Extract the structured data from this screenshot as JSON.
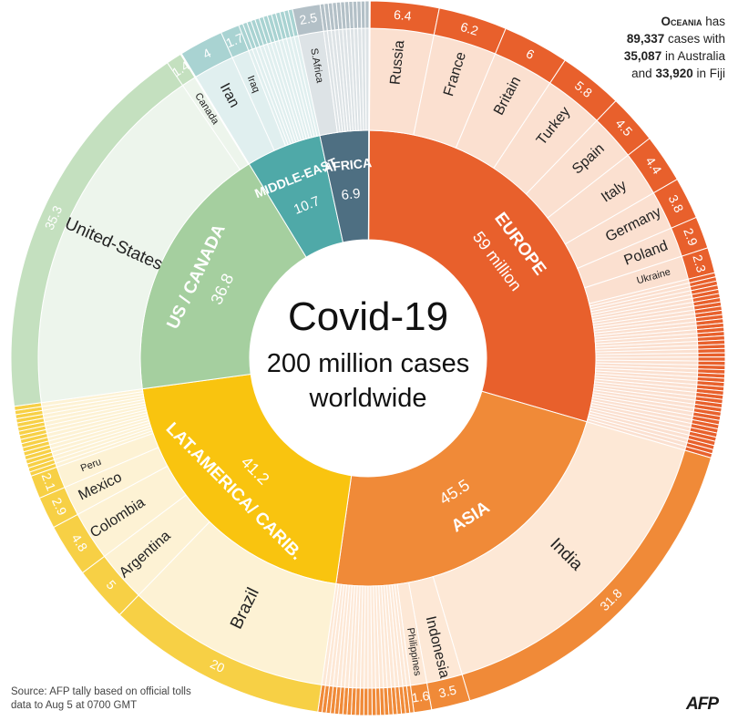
{
  "center": {
    "title": "Covid-19",
    "line1": "200 million cases",
    "line2": "worldwide"
  },
  "oceania_note": {
    "name": "Oceania",
    "l1a": " has",
    "l2a": "89,337",
    "l2b": " cases with",
    "l3a": "35,087",
    "l3b": " in Australia",
    "l4a": "and ",
    "l4b": "33,920",
    "l4c": " in Fiji"
  },
  "source": {
    "line1": "Source: AFP tally based on official tolls",
    "line2": "data to Aug 5 at 0700 GMT"
  },
  "logo": "AFP",
  "chart_data": {
    "type": "sunburst",
    "total_millions": 200,
    "regions": [
      {
        "name": "Europe",
        "label": "EUROPE",
        "value_label": "59 million",
        "value": 59,
        "inner_color": "#e8602c",
        "outer_color": "#fbe0d0",
        "band_color": "#e8602c",
        "countries": [
          {
            "name": "Russia",
            "value": 6.4
          },
          {
            "name": "France",
            "value": 6.2
          },
          {
            "name": "Britain",
            "value": 6
          },
          {
            "name": "Turkey",
            "value": 5.8
          },
          {
            "name": "Spain",
            "value": 4.5
          },
          {
            "name": "Italy",
            "value": 4.4
          },
          {
            "name": "Germany",
            "value": 3.8
          },
          {
            "name": "Poland",
            "value": 2.9
          },
          {
            "name": "Ukraine",
            "value": 2.3
          }
        ]
      },
      {
        "name": "Asia",
        "label": "ASIA",
        "value_label": "45.5",
        "value": 45.5,
        "inner_color": "#f08a38",
        "outer_color": "#fde8d6",
        "band_color": "#f08a38",
        "countries": [
          {
            "name": "India",
            "value": 31.8
          },
          {
            "name": "Indonesia",
            "value": 3.5
          },
          {
            "name": "Philippines",
            "value": 1.6
          }
        ]
      },
      {
        "name": "Latin America / Caribbean",
        "label": "LAT.AMERICA/ CARIB.",
        "value_label": "41.2",
        "value": 41.2,
        "inner_color": "#f9c40f",
        "outer_color": "#fdf2d4",
        "band_color": "#f7d045",
        "countries": [
          {
            "name": "Brazil",
            "value": 20
          },
          {
            "name": "Argentina",
            "value": 5
          },
          {
            "name": "Colombia",
            "value": 4.8
          },
          {
            "name": "Mexico",
            "value": 2.9
          },
          {
            "name": "Peru",
            "value": 2.1
          }
        ]
      },
      {
        "name": "US / Canada",
        "label": "US / CANADA",
        "value_label": "36.8",
        "value": 36.8,
        "inner_color": "#a5cf9f",
        "outer_color": "#edf5ec",
        "band_color": "#c4e0bf",
        "countries": [
          {
            "name": "United-States",
            "value": 35.3
          },
          {
            "name": "Canada",
            "value": 1.4
          }
        ]
      },
      {
        "name": "Middle-East",
        "label": "MIDDLE-EAST",
        "value_label": "10.7",
        "value": 10.7,
        "inner_color": "#4fa9a8",
        "outer_color": "#e0efef",
        "band_color": "#a9d3d2",
        "countries": [
          {
            "name": "Iran",
            "value": 4
          },
          {
            "name": "Iraq",
            "value": 1.7
          }
        ]
      },
      {
        "name": "Africa",
        "label": "AFRICA",
        "value_label": "6.9",
        "value": 6.9,
        "inner_color": "#4e6f82",
        "outer_color": "#dde3e6",
        "band_color": "#b3c0c7",
        "countries": [
          {
            "name": "S.Africa",
            "value": 2.5
          }
        ]
      },
      {
        "name": "Oceania",
        "label": "",
        "value_label": "",
        "value": 0.09,
        "inner_color": "#2e3f4c",
        "outer_color": "#2e3f4c",
        "band_color": "#2e3f4c",
        "countries": []
      }
    ]
  }
}
